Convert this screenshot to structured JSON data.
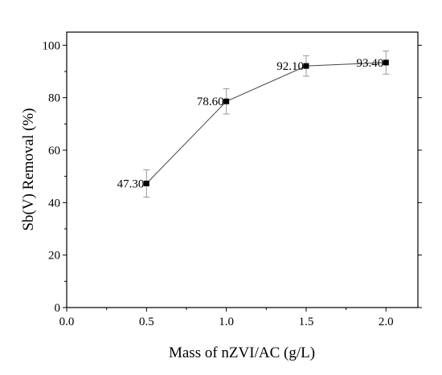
{
  "chart_data": {
    "type": "line",
    "title": "",
    "xlabel": "Mass of nZVI/AC (g/L)",
    "ylabel": "Sb(V) Removal (%)",
    "xlim": [
      0.0,
      2.2
    ],
    "ylim": [
      0,
      105
    ],
    "x_ticks": [
      "0.0",
      "0.5",
      "1.0",
      "1.5",
      "2.0"
    ],
    "y_ticks": [
      "0",
      "20",
      "40",
      "60",
      "80",
      "100"
    ],
    "grid": false,
    "series": [
      {
        "x": [
          0.5,
          1.0,
          1.5,
          2.0
        ],
        "y": [
          47.3,
          78.6,
          92.1,
          93.4
        ],
        "error": [
          5.2,
          4.8,
          3.9,
          4.4
        ],
        "labels": [
          "47.30",
          "78.60",
          "92.10",
          "93.40"
        ]
      }
    ]
  }
}
